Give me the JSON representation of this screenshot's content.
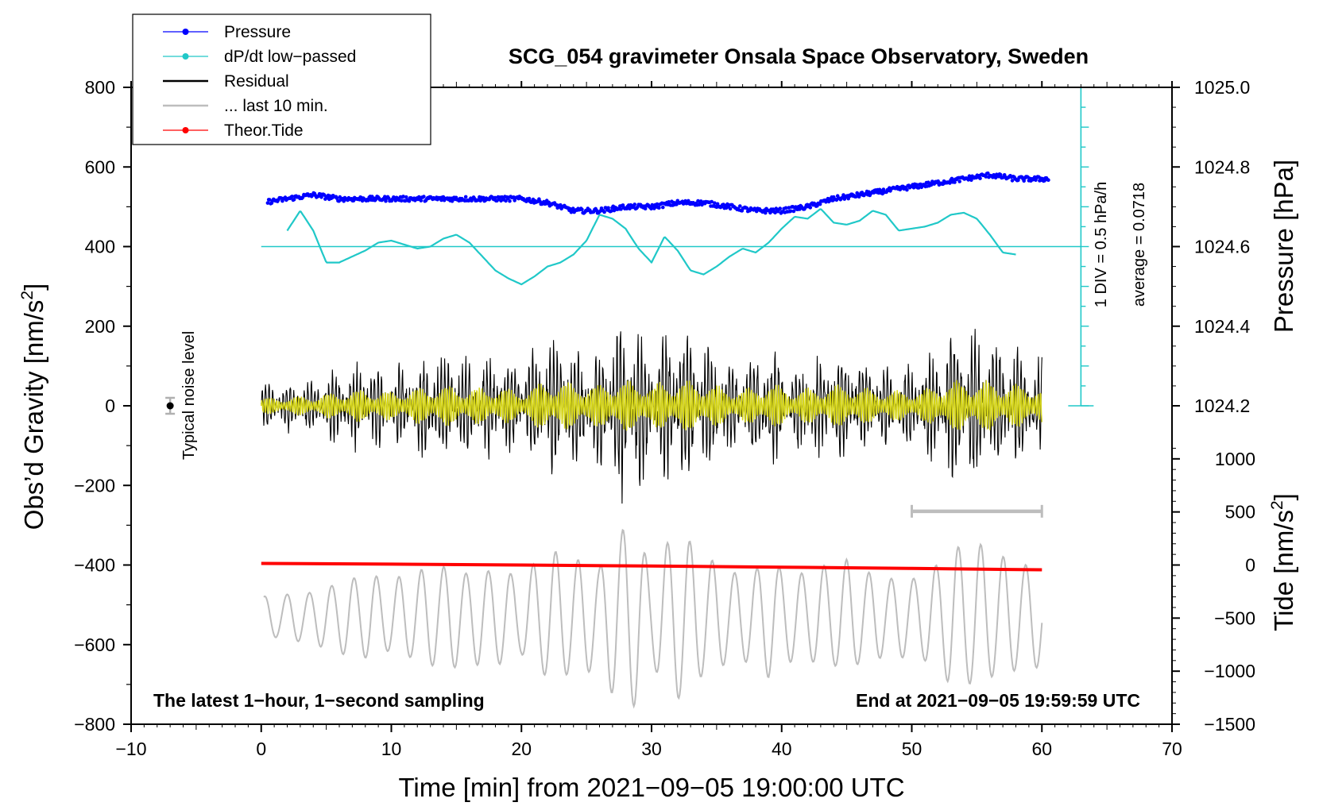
{
  "chart_data": {
    "type": "line",
    "title": "SCG_054 gravimeter Onsala Space Observatory, Sweden",
    "xlabel": "Time [min] from 2021−09−05 19:00:00 UTC",
    "ylabel_left": "Obs’d Gravity [nm/s",
    "ylabel_left_sup": "2",
    "ylabel_left_end": "]",
    "ylabel_right_pressure": "Pressure [hPa]",
    "ylabel_right_tide": "Tide [nm/s",
    "ylabel_right_tide_sup": "2",
    "ylabel_right_tide_end": "]",
    "xlim": [
      -10,
      70
    ],
    "ylim": [
      -800,
      800
    ],
    "x_ticks": [
      -10,
      0,
      10,
      20,
      30,
      40,
      50,
      60,
      70
    ],
    "x_tick_labels": [
      "−10",
      "0",
      "10",
      "20",
      "30",
      "40",
      "50",
      "60",
      "70"
    ],
    "y_ticks": [
      800,
      600,
      400,
      200,
      0,
      -200,
      -400,
      -600,
      -800
    ],
    "y_tick_labels": [
      "800",
      "600",
      "400",
      "200",
      "0",
      "−200",
      "−400",
      "−600",
      "−800"
    ],
    "pressure_axis": {
      "ticks": [
        1025.0,
        1024.8,
        1024.6,
        1024.4,
        1024.2
      ],
      "tick_labels": [
        "1025.0",
        "1024.8",
        "1024.6",
        "1024.4",
        "1024.2"
      ],
      "gravity_at_1024_6": 400,
      "gravity_per_hpa": 1000
    },
    "tide_axis": {
      "ticks": [
        1000,
        500,
        0,
        -500,
        -1000,
        -1500
      ],
      "tick_labels": [
        "1000",
        "500",
        "0",
        "−500",
        "−1000",
        "−1500"
      ],
      "gravity_at_zero": -400,
      "gravity_per_unit": 0.2667
    },
    "legend": [
      {
        "name": "Pressure",
        "color": "#0000ff",
        "marker": true
      },
      {
        "name": "dP/dt low−passed",
        "color": "#20c8c8",
        "marker": true
      },
      {
        "name": "Residual",
        "color": "#000000",
        "marker": false
      },
      {
        "name": "... last 10 min.",
        "color": "#bdbdbd",
        "marker": false
      },
      {
        "name": "Theor.Tide",
        "color": "#ff0000",
        "marker": true
      }
    ],
    "series": [
      {
        "name": "Pressure",
        "unit": "hPa",
        "color": "#0000ff",
        "x": [
          0,
          2,
          4,
          6,
          8,
          10,
          12,
          14,
          16,
          18,
          20,
          22,
          24,
          26,
          28,
          30,
          32,
          34,
          36,
          38,
          40,
          42,
          44,
          46,
          48,
          50,
          52,
          54,
          56,
          58,
          60
        ],
        "values": [
          1024.71,
          1024.72,
          1024.73,
          1024.72,
          1024.72,
          1024.72,
          1024.72,
          1024.72,
          1024.72,
          1024.72,
          1024.72,
          1024.71,
          1024.69,
          1024.69,
          1024.7,
          1024.7,
          1024.71,
          1024.71,
          1024.7,
          1024.69,
          1024.69,
          1024.7,
          1024.72,
          1024.73,
          1024.74,
          1024.75,
          1024.76,
          1024.77,
          1024.78,
          1024.77,
          1024.77
        ]
      },
      {
        "name": "dP/dt low−passed",
        "unit": "nm/s2 (display)",
        "color": "#20c8c8",
        "x": [
          2,
          3,
          4,
          5,
          6,
          7,
          8,
          9,
          10,
          11,
          12,
          13,
          14,
          15,
          16,
          17,
          18,
          19,
          20,
          21,
          22,
          23,
          24,
          25,
          26,
          27,
          28,
          29,
          30,
          31,
          32,
          33,
          34,
          35,
          36,
          37,
          38,
          39,
          40,
          41,
          42,
          43,
          44,
          45,
          46,
          47,
          48,
          49,
          50,
          51,
          52,
          53,
          54,
          55,
          56,
          57,
          58
        ],
        "values": [
          440,
          490,
          440,
          360,
          360,
          375,
          390,
          410,
          415,
          405,
          395,
          400,
          420,
          430,
          410,
          375,
          340,
          320,
          305,
          325,
          350,
          360,
          380,
          415,
          480,
          470,
          445,
          395,
          360,
          425,
          390,
          340,
          330,
          350,
          375,
          395,
          385,
          410,
          445,
          475,
          470,
          495,
          460,
          455,
          465,
          490,
          480,
          440,
          445,
          450,
          460,
          480,
          485,
          470,
          430,
          385,
          380
        ]
      },
      {
        "name": "Residual",
        "unit": "nm/s2",
        "color": "#000000",
        "x_range": [
          0,
          60
        ],
        "amplitude_envelope": [
          [
            0,
            60
          ],
          [
            2,
            70
          ],
          [
            4,
            80
          ],
          [
            6,
            110
          ],
          [
            8,
            130
          ],
          [
            10,
            110
          ],
          [
            12,
            140
          ],
          [
            14,
            160
          ],
          [
            16,
            140
          ],
          [
            18,
            150
          ],
          [
            20,
            120
          ],
          [
            22,
            200
          ],
          [
            24,
            180
          ],
          [
            26,
            160
          ],
          [
            28,
            300
          ],
          [
            29,
            250
          ],
          [
            30,
            150
          ],
          [
            32,
            270
          ],
          [
            33,
            220
          ],
          [
            35,
            160
          ],
          [
            37,
            130
          ],
          [
            39,
            180
          ],
          [
            41,
            130
          ],
          [
            43,
            150
          ],
          [
            45,
            170
          ],
          [
            47,
            130
          ],
          [
            49,
            120
          ],
          [
            51,
            130
          ],
          [
            53,
            210
          ],
          [
            55,
            220
          ],
          [
            57,
            180
          ],
          [
            59,
            160
          ],
          [
            60,
            150
          ]
        ]
      },
      {
        "name": "Theor.Tide",
        "unit": "nm/s2",
        "color": "#ff0000",
        "x": [
          0,
          10,
          20,
          30,
          40,
          50,
          60
        ],
        "values": [
          15,
          8,
          0,
          -10,
          -20,
          -32,
          -45
        ]
      },
      {
        "name": "... last 10 min.",
        "unit": "nm/s2 (display, x10 stretch)",
        "color": "#bdbdbd",
        "x_range": [
          0,
          60
        ]
      }
    ],
    "noise_marker": {
      "x": -7,
      "y": 0,
      "error": 20,
      "label": "Typical noise level"
    },
    "scale_bar": {
      "x": [
        50,
        60
      ],
      "y": -265
    },
    "dpdt_scale_labels": [
      "1 DIV = 0.5 hPa/h",
      "average = 0.0718"
    ],
    "footer_left": "The latest 1−hour, 1−second sampling",
    "footer_right": "End at 2021−09−05 19:59:59 UTC",
    "grid": false
  }
}
